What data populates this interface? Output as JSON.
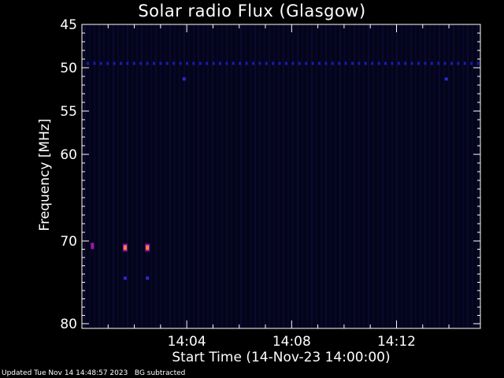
{
  "footer": {
    "updated": "Updated Tue Nov 14 14:48:57 2023",
    "note": "BG subtracted"
  },
  "chart_data": {
    "type": "heatmap",
    "title": "Solar radio Flux (Glasgow)",
    "xlabel": "Start Time (14-Nov-23 14:00:00)",
    "ylabel": "Frequency [MHz]",
    "x_unit": "minutes after 14:00:00",
    "xlim": [
      0,
      15.2
    ],
    "ylim": [
      45,
      80
    ],
    "y_inverted": true,
    "x_ticks": [
      {
        "value": 4,
        "label": "14:04"
      },
      {
        "value": 8,
        "label": "14:08"
      },
      {
        "value": 12,
        "label": "14:12"
      }
    ],
    "y_ticks": [
      {
        "value": 45,
        "label": "45"
      },
      {
        "value": 50,
        "label": "50"
      },
      {
        "value": 55,
        "label": "55"
      },
      {
        "value": 60,
        "label": "60"
      },
      {
        "value": 70,
        "label": "70"
      },
      {
        "value": 80,
        "label": "80"
      }
    ],
    "background_color": "#04041a",
    "features": [
      {
        "kind": "persistent_band",
        "freq_mhz": 49.5,
        "intensity": "low",
        "color": "#1a1aa8"
      },
      {
        "kind": "spot",
        "time_min": 3.9,
        "freq_mhz": 51.3,
        "intensity": "low",
        "color": "#2a2ad0"
      },
      {
        "kind": "spot",
        "time_min": 13.9,
        "freq_mhz": 51.3,
        "intensity": "low",
        "color": "#2a2ad0"
      },
      {
        "kind": "spot",
        "time_min": 0.4,
        "freq_mhz": 70.6,
        "intensity": "medium",
        "color": "#9a1aa0"
      },
      {
        "kind": "spot",
        "time_min": 1.65,
        "freq_mhz": 70.8,
        "intensity": "high",
        "color": "#ff8040"
      },
      {
        "kind": "spot",
        "time_min": 2.5,
        "freq_mhz": 70.8,
        "intensity": "high",
        "color": "#ff8040"
      },
      {
        "kind": "spot",
        "time_min": 1.65,
        "freq_mhz": 74.5,
        "intensity": "low",
        "color": "#2a2ad8"
      },
      {
        "kind": "spot",
        "time_min": 2.5,
        "freq_mhz": 74.5,
        "intensity": "low",
        "color": "#2a2ad8"
      }
    ]
  }
}
